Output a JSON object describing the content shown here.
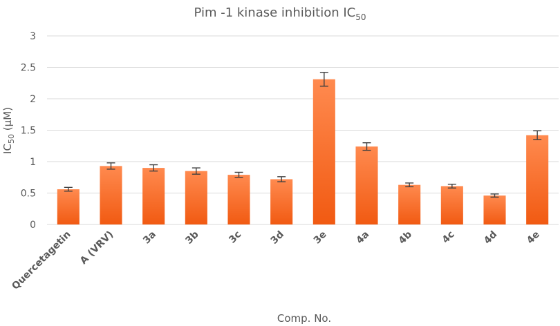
{
  "chart_data": {
    "type": "bar",
    "title": "Pim -1 kinase inhibition IC",
    "title_subscript": "50",
    "xlabel": "Comp. No.",
    "ylabel": "IC",
    "ylabel_subscript": "50",
    "ylabel_suffix": " (µM)",
    "ylim": [
      0,
      3
    ],
    "yticks": [
      "0",
      "0.5",
      "1",
      "1.5",
      "2",
      "2.5",
      "3"
    ],
    "grid": true,
    "legend": "none",
    "bar_color_top": "#ff8a4f",
    "bar_color_bottom": "#f15a12",
    "categories": [
      "Quercetagetin",
      "A (VRV)",
      "3a",
      "3b",
      "3c",
      "3d",
      "3e",
      "4a",
      "4b",
      "4c",
      "4d",
      "4e"
    ],
    "values": [
      0.56,
      0.93,
      0.9,
      0.85,
      0.79,
      0.72,
      2.31,
      1.24,
      0.63,
      0.61,
      0.46,
      1.42
    ],
    "errors": [
      0.03,
      0.05,
      0.05,
      0.05,
      0.04,
      0.04,
      0.11,
      0.06,
      0.03,
      0.03,
      0.025,
      0.07
    ]
  }
}
